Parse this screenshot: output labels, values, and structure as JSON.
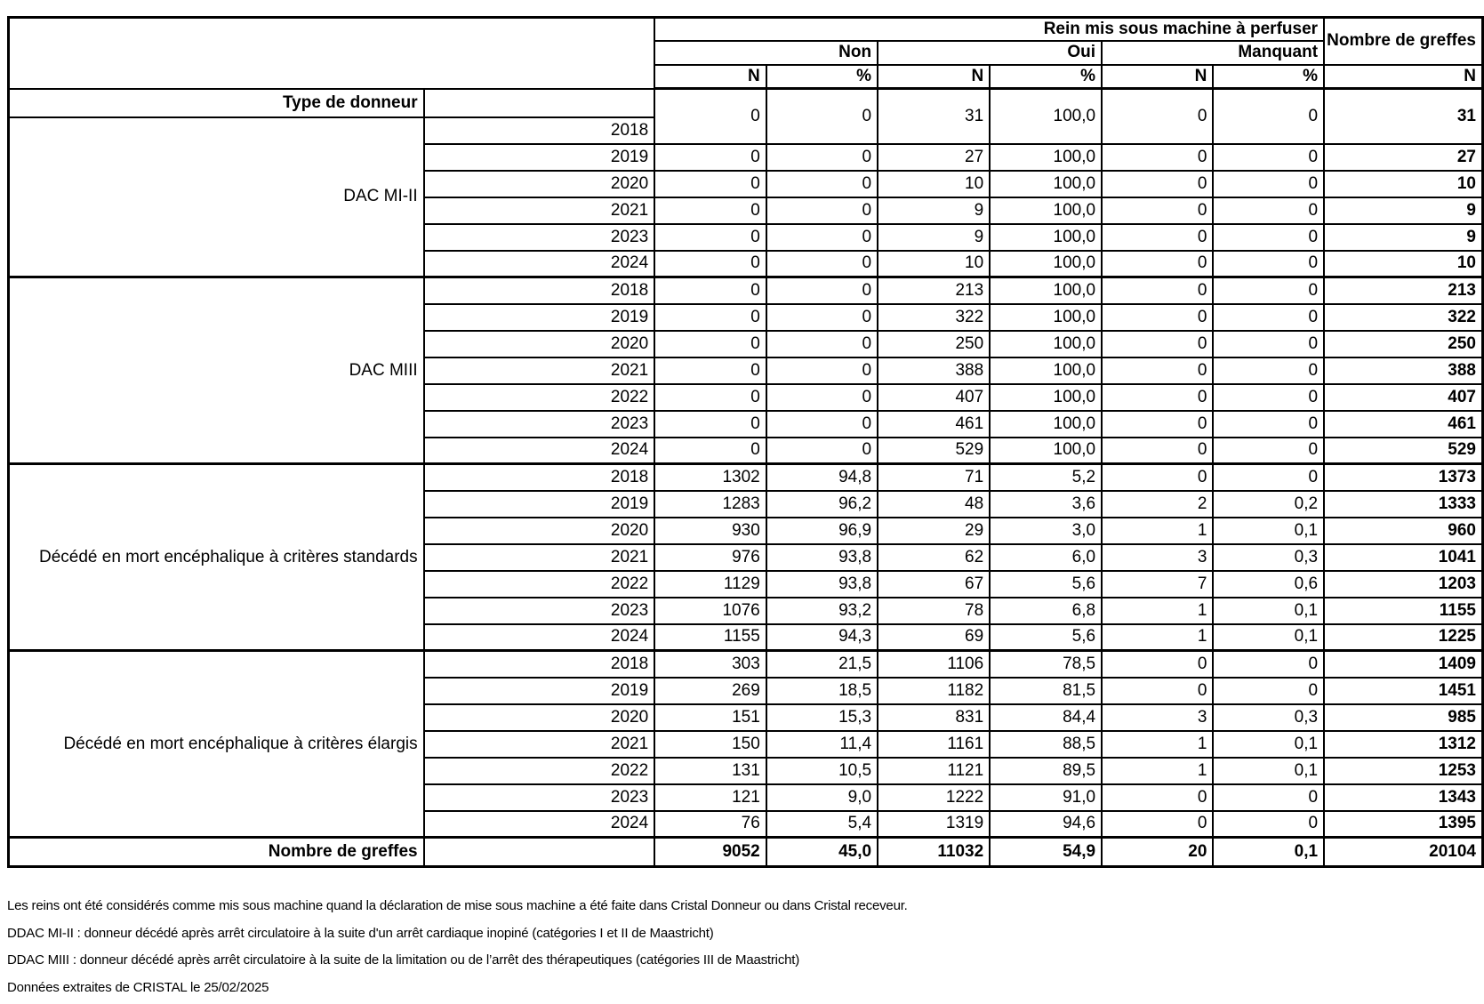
{
  "table": {
    "col_group_header": "Rein mis sous machine à perfuser",
    "total_col_header": "Nombre de\ngreffes",
    "sub_headers": [
      "Non",
      "Oui",
      "Manquant"
    ],
    "measure_headers": [
      "N",
      "%",
      "N",
      "%",
      "N",
      "%",
      "N"
    ],
    "stub_header": "Type de donneur",
    "groups": [
      {
        "label": "DAC MI-II",
        "rows": [
          {
            "year": "2018",
            "values": [
              "0",
              "0",
              "31",
              "100,0",
              "0",
              "0"
            ],
            "total": "31"
          },
          {
            "year": "2019",
            "values": [
              "0",
              "0",
              "27",
              "100,0",
              "0",
              "0"
            ],
            "total": "27"
          },
          {
            "year": "2020",
            "values": [
              "0",
              "0",
              "10",
              "100,0",
              "0",
              "0"
            ],
            "total": "10"
          },
          {
            "year": "2021",
            "values": [
              "0",
              "0",
              "9",
              "100,0",
              "0",
              "0"
            ],
            "total": "9"
          },
          {
            "year": "2023",
            "values": [
              "0",
              "0",
              "9",
              "100,0",
              "0",
              "0"
            ],
            "total": "9"
          },
          {
            "year": "2024",
            "values": [
              "0",
              "0",
              "10",
              "100,0",
              "0",
              "0"
            ],
            "total": "10"
          }
        ]
      },
      {
        "label": "DAC MIII",
        "rows": [
          {
            "year": "2018",
            "values": [
              "0",
              "0",
              "213",
              "100,0",
              "0",
              "0"
            ],
            "total": "213"
          },
          {
            "year": "2019",
            "values": [
              "0",
              "0",
              "322",
              "100,0",
              "0",
              "0"
            ],
            "total": "322"
          },
          {
            "year": "2020",
            "values": [
              "0",
              "0",
              "250",
              "100,0",
              "0",
              "0"
            ],
            "total": "250"
          },
          {
            "year": "2021",
            "values": [
              "0",
              "0",
              "388",
              "100,0",
              "0",
              "0"
            ],
            "total": "388"
          },
          {
            "year": "2022",
            "values": [
              "0",
              "0",
              "407",
              "100,0",
              "0",
              "0"
            ],
            "total": "407"
          },
          {
            "year": "2023",
            "values": [
              "0",
              "0",
              "461",
              "100,0",
              "0",
              "0"
            ],
            "total": "461"
          },
          {
            "year": "2024",
            "values": [
              "0",
              "0",
              "529",
              "100,0",
              "0",
              "0"
            ],
            "total": "529"
          }
        ]
      },
      {
        "label": "Décédé en mort encéphalique à critères standards",
        "rows": [
          {
            "year": "2018",
            "values": [
              "1302",
              "94,8",
              "71",
              "5,2",
              "0",
              "0"
            ],
            "total": "1373"
          },
          {
            "year": "2019",
            "values": [
              "1283",
              "96,2",
              "48",
              "3,6",
              "2",
              "0,2"
            ],
            "total": "1333"
          },
          {
            "year": "2020",
            "values": [
              "930",
              "96,9",
              "29",
              "3,0",
              "1",
              "0,1"
            ],
            "total": "960"
          },
          {
            "year": "2021",
            "values": [
              "976",
              "93,8",
              "62",
              "6,0",
              "3",
              "0,3"
            ],
            "total": "1041"
          },
          {
            "year": "2022",
            "values": [
              "1129",
              "93,8",
              "67",
              "5,6",
              "7",
              "0,6"
            ],
            "total": "1203"
          },
          {
            "year": "2023",
            "values": [
              "1076",
              "93,2",
              "78",
              "6,8",
              "1",
              "0,1"
            ],
            "total": "1155"
          },
          {
            "year": "2024",
            "values": [
              "1155",
              "94,3",
              "69",
              "5,6",
              "1",
              "0,1"
            ],
            "total": "1225"
          }
        ]
      },
      {
        "label": "Décédé en mort encéphalique à critères élargis",
        "rows": [
          {
            "year": "2018",
            "values": [
              "303",
              "21,5",
              "1106",
              "78,5",
              "0",
              "0"
            ],
            "total": "1409"
          },
          {
            "year": "2019",
            "values": [
              "269",
              "18,5",
              "1182",
              "81,5",
              "0",
              "0"
            ],
            "total": "1451"
          },
          {
            "year": "2020",
            "values": [
              "151",
              "15,3",
              "831",
              "84,4",
              "3",
              "0,3"
            ],
            "total": "985"
          },
          {
            "year": "2021",
            "values": [
              "150",
              "11,4",
              "1161",
              "88,5",
              "1",
              "0,1"
            ],
            "total": "1312"
          },
          {
            "year": "2022",
            "values": [
              "131",
              "10,5",
              "1121",
              "89,5",
              "1",
              "0,1"
            ],
            "total": "1253"
          },
          {
            "year": "2023",
            "values": [
              "121",
              "9,0",
              "1222",
              "91,0",
              "0",
              "0"
            ],
            "total": "1343"
          },
          {
            "year": "2024",
            "values": [
              "76",
              "5,4",
              "1319",
              "94,6",
              "0",
              "0"
            ],
            "total": "1395"
          }
        ]
      }
    ],
    "total_row": {
      "label": "Nombre de greffes",
      "values": [
        "9052",
        "45,0",
        "11032",
        "54,9",
        "20",
        "0,1"
      ],
      "total": "20104"
    }
  },
  "footnotes": [
    "Les reins ont été considérés comme mis sous machine quand la déclaration de mise sous machine a été faite dans Cristal Donneur ou dans Cristal receveur.",
    "DDAC MI-II : donneur décédé après arrêt circulatoire à la suite d'un arrêt cardiaque inopiné (catégories I et II de Maastricht)",
    "DDAC MIII : donneur décédé après arrêt circulatoire à la suite de la limitation ou de l’arrêt des thérapeutiques (catégories III de Maastricht)",
    "Données extraites de CRISTAL le 25/02/2025"
  ]
}
